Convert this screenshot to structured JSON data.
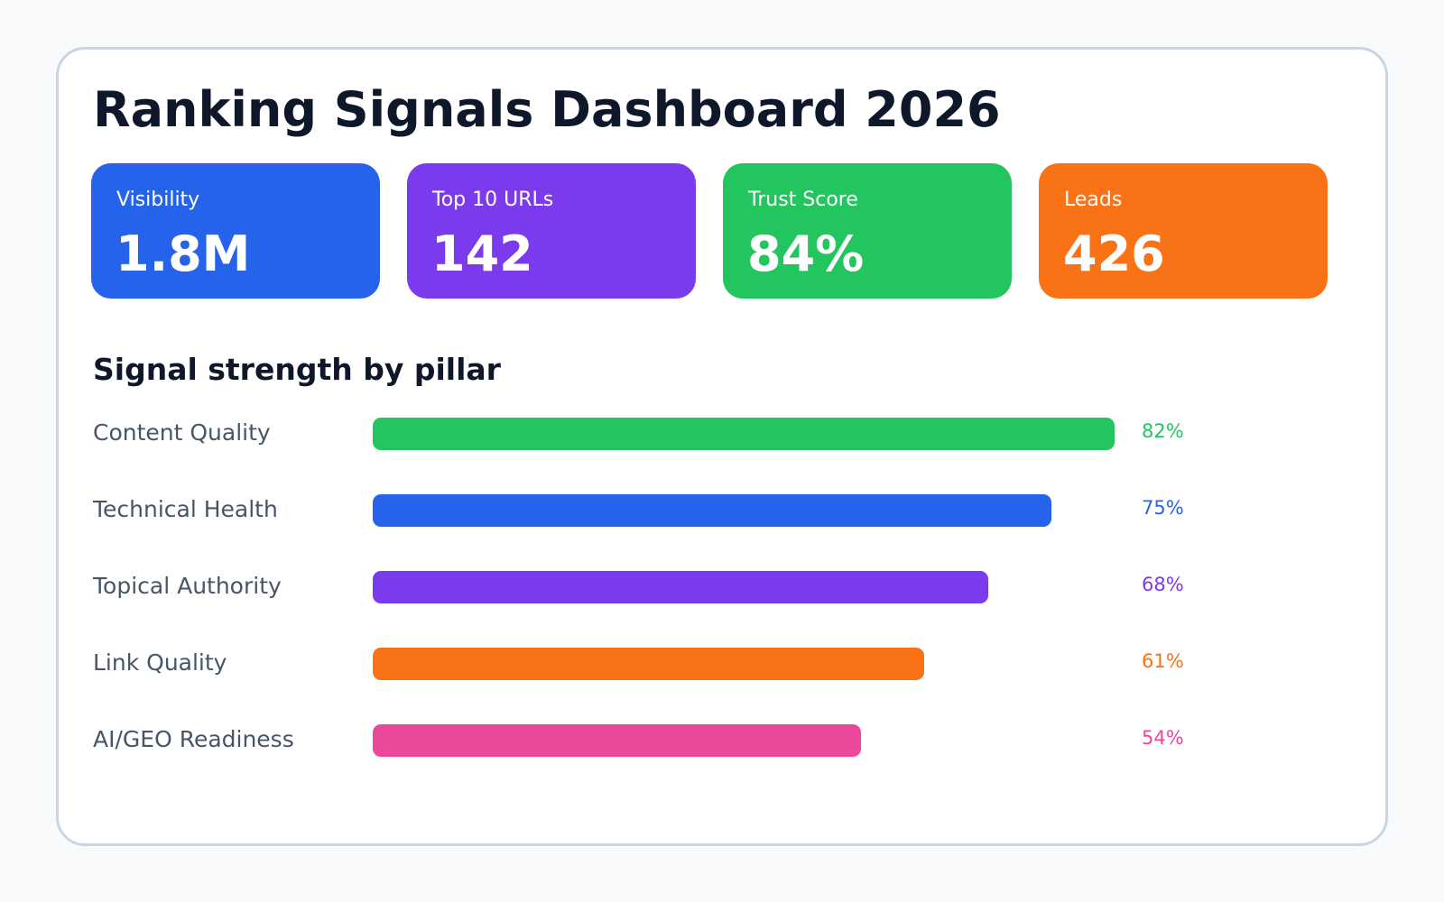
{
  "title": "Ranking Signals Dashboard 2026",
  "kpis": [
    {
      "label": "Visibility",
      "value": "1.8M",
      "color": "#2563eb"
    },
    {
      "label": "Top 10 URLs",
      "value": "142",
      "color": "#7c3aed"
    },
    {
      "label": "Trust Score",
      "value": "84%",
      "color": "#22c55e"
    },
    {
      "label": "Leads",
      "value": "426",
      "color": "#f97316"
    }
  ],
  "chart_data": {
    "type": "bar",
    "title": "Signal strength by pillar",
    "orientation": "horizontal",
    "categories": [
      "Content Quality",
      "Technical Health",
      "Topical Authority",
      "Link Quality",
      "AI/GEO Readiness"
    ],
    "values": [
      82,
      75,
      68,
      61,
      54
    ],
    "value_labels": [
      "82%",
      "75%",
      "68%",
      "61%",
      "54%"
    ],
    "colors": [
      "#22c55e",
      "#2563eb",
      "#7c3aed",
      "#f97316",
      "#ec4899"
    ],
    "xlim": [
      0,
      82
    ],
    "grid": false
  }
}
